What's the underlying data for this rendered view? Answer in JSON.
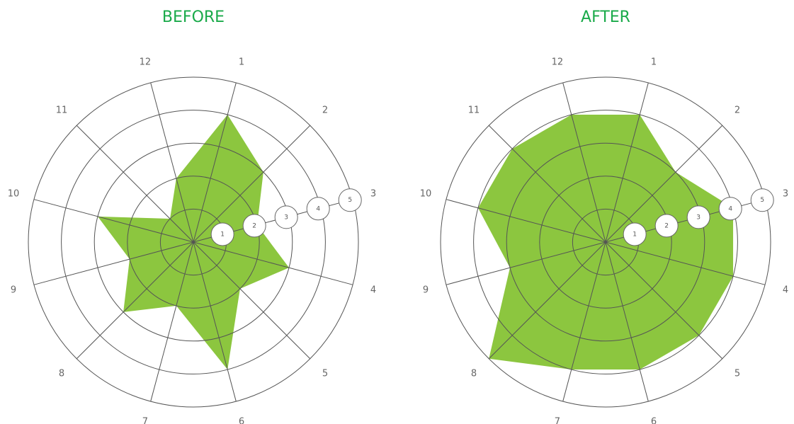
{
  "chart_data": [
    {
      "type": "radar",
      "title": "BEFORE",
      "categories": [
        "1",
        "2",
        "3",
        "4",
        "5",
        "6",
        "7",
        "8",
        "9",
        "10",
        "11",
        "12"
      ],
      "values": [
        4,
        3,
        2,
        3,
        2,
        4,
        2,
        3,
        2,
        3,
        1,
        2
      ],
      "color": "#8cc63f",
      "rlim": [
        0,
        5
      ],
      "rticks": [
        1,
        2,
        3,
        4,
        5
      ]
    },
    {
      "type": "radar",
      "title": "AFTER",
      "categories": [
        "1",
        "2",
        "3",
        "4",
        "5",
        "6",
        "7",
        "8",
        "9",
        "10",
        "11",
        "12"
      ],
      "values": [
        4,
        3,
        4,
        4,
        4,
        4,
        4,
        5,
        3,
        4,
        4,
        4
      ],
      "color": "#8cc63f",
      "rlim": [
        0,
        5
      ],
      "rticks": [
        1,
        2,
        3,
        4,
        5
      ]
    }
  ]
}
